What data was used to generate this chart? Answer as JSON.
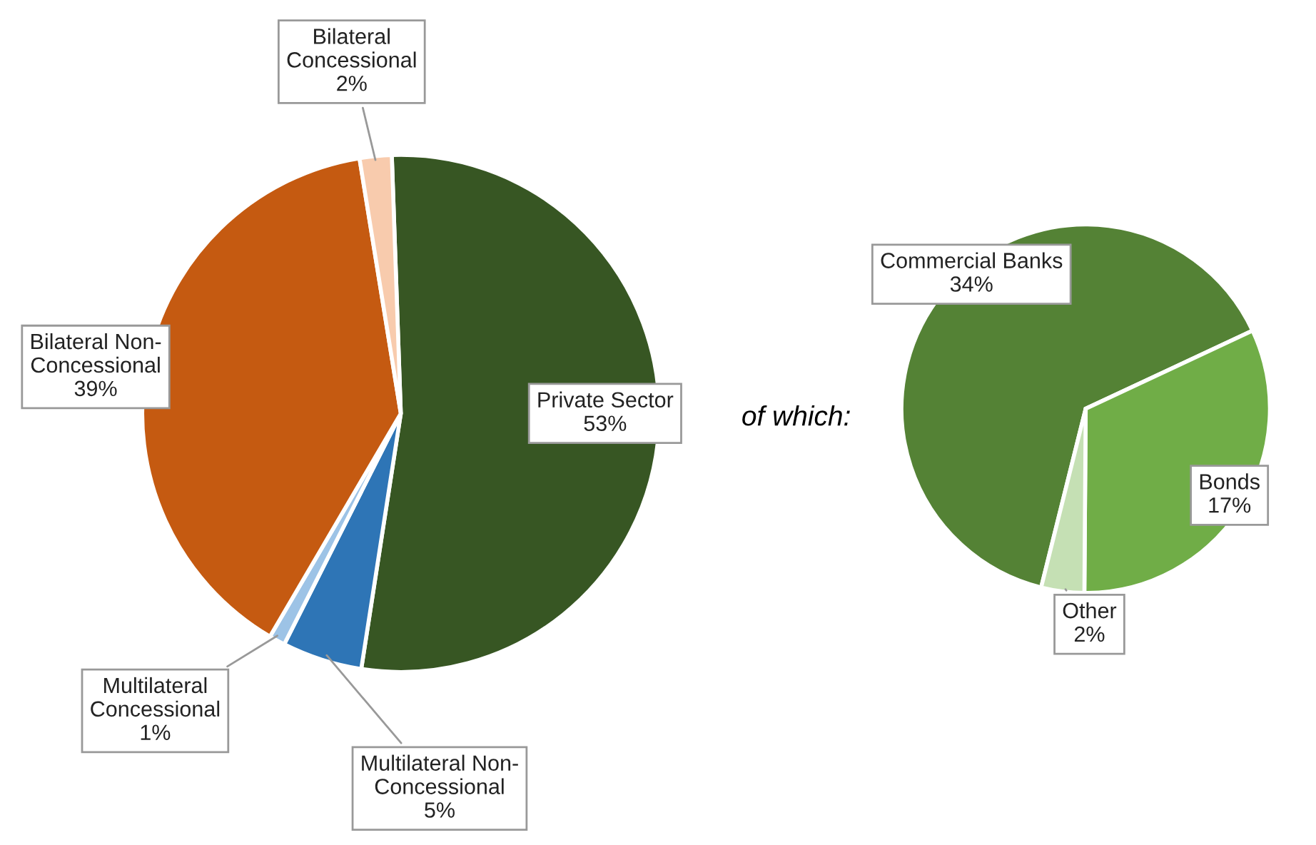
{
  "chart_data": [
    {
      "type": "pie",
      "categories": [
        "Private Sector",
        "Multilateral Non-\nConcessional",
        "Multilateral\nConcessional",
        "Bilateral Non-\nConcessional",
        "Bilateral\nConcessional"
      ],
      "values": [
        53,
        5,
        1,
        39,
        2
      ],
      "colors": [
        "#375623",
        "#2e75b6",
        "#9dc3e6",
        "#c55a11",
        "#f8cbad"
      ],
      "value_labels": [
        "53%",
        "5%",
        "1%",
        "39%",
        "2%"
      ],
      "annotations": [
        "of which:"
      ]
    },
    {
      "type": "pie",
      "categories": [
        "Commercial Banks",
        "Bonds",
        "Other"
      ],
      "values": [
        34,
        17,
        2
      ],
      "colors": [
        "#548235",
        "#70ad47",
        "#c5e0b4"
      ],
      "value_labels": [
        "34%",
        "17%",
        "2%"
      ]
    }
  ]
}
